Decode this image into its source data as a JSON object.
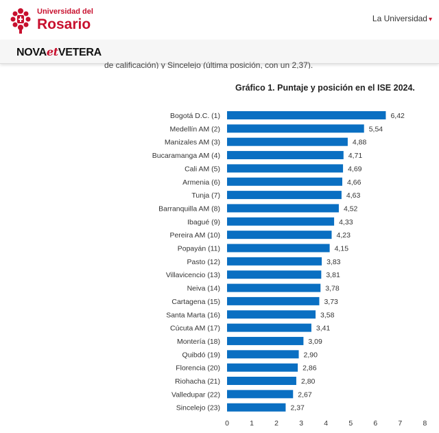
{
  "header": {
    "logo_line1": "Universidad del",
    "logo_line2": "Rosario",
    "nav_item": "La Universidad",
    "brand_part1": "NOVA",
    "brand_part2": "et",
    "brand_part3": "VETERA"
  },
  "article": {
    "cut_text": "de calificación) y Sincelejo (última posición, con un 2,37)."
  },
  "colors": {
    "bar": "#0a6fc2",
    "accent": "#c8102e"
  },
  "chart_data": {
    "type": "bar",
    "orientation": "horizontal",
    "title": "Gráfico 1. Puntaje y posición en el ISE 2024.",
    "xlim": [
      0,
      8
    ],
    "xticks": [
      "0",
      "1",
      "2",
      "3",
      "4",
      "5",
      "6",
      "7",
      "8"
    ],
    "categories": [
      "Bogotá D.C. (1)",
      "Medellín AM (2)",
      "Manizales AM (3)",
      "Bucaramanga AM (4)",
      "Cali AM (5)",
      "Armenia (6)",
      "Tunja (7)",
      "Barranquilla AM (8)",
      "Ibagué (9)",
      "Pereira AM (10)",
      "Popayán (11)",
      "Pasto (12)",
      "Villavicencio (13)",
      "Neiva (14)",
      "Cartagena (15)",
      "Santa Marta (16)",
      "Cúcuta AM (17)",
      "Montería (18)",
      "Quibdó (19)",
      "Florencia (20)",
      "Riohacha (21)",
      "Valledupar (22)",
      "Sincelejo (23)"
    ],
    "values": [
      6.42,
      5.54,
      4.88,
      4.71,
      4.69,
      4.66,
      4.63,
      4.52,
      4.33,
      4.23,
      4.15,
      3.83,
      3.81,
      3.78,
      3.73,
      3.58,
      3.41,
      3.09,
      2.9,
      2.86,
      2.8,
      2.67,
      2.37
    ],
    "value_labels": [
      "6,42",
      "5,54",
      "4,88",
      "4,71",
      "4,69",
      "4,66",
      "4,63",
      "4,52",
      "4,33",
      "4,23",
      "4,15",
      "3,83",
      "3,81",
      "3,78",
      "3,73",
      "3,58",
      "3,41",
      "3,09",
      "2,90",
      "2,86",
      "2,80",
      "2,67",
      "2,37"
    ],
    "grid": false,
    "legend": "none"
  }
}
